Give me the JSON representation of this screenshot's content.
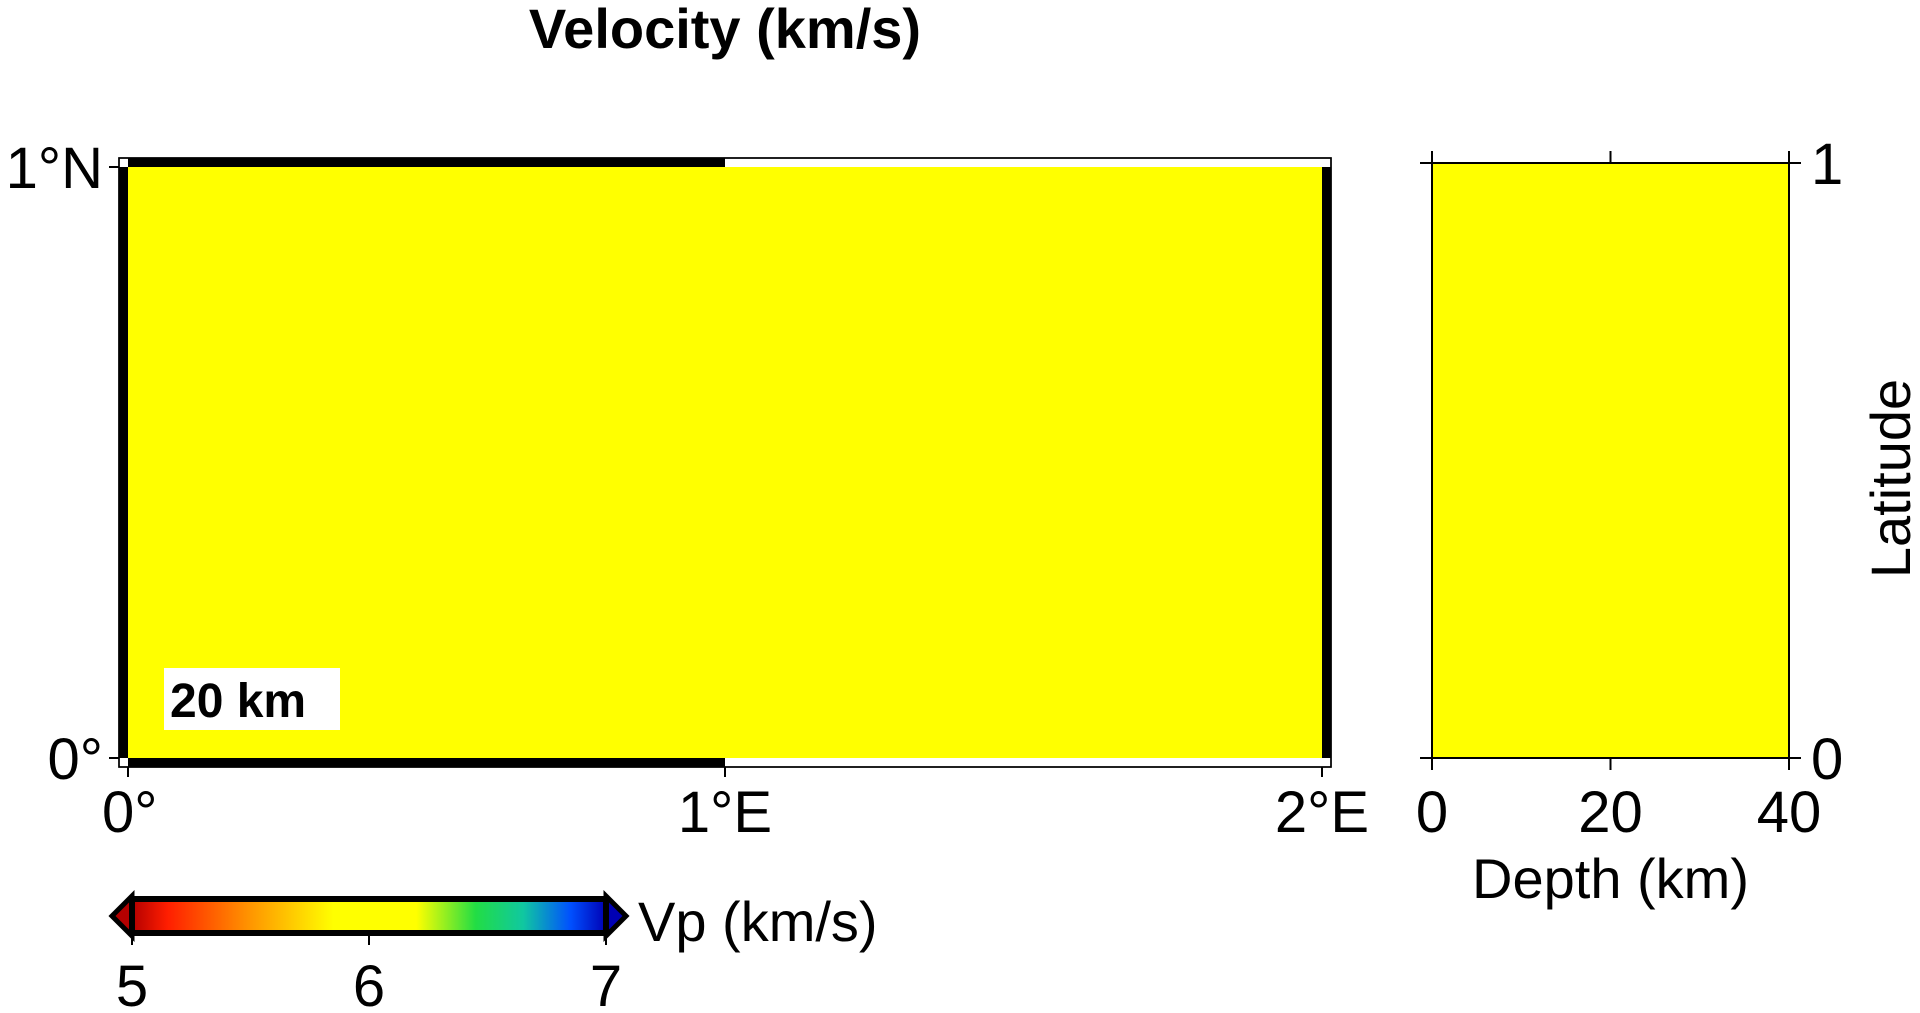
{
  "title": "Velocity (km/s)",
  "chart_data": [
    {
      "type": "heatmap",
      "name": "map-view",
      "xlim": [
        0,
        2
      ],
      "ylim": [
        0,
        1
      ],
      "x_ticks": [
        {
          "value": 0,
          "label": "0°"
        },
        {
          "value": 1,
          "label": "1°E"
        },
        {
          "value": 2,
          "label": "2°E"
        }
      ],
      "y_ticks": [
        {
          "value": 0,
          "label": "0°"
        },
        {
          "value": 1,
          "label": "1°N"
        }
      ],
      "value": 6.0,
      "fill_color": "#ffff00",
      "depth_label": "20 km",
      "frame_style": "fancy"
    },
    {
      "type": "heatmap",
      "name": "depth-section",
      "xlim": [
        0,
        40
      ],
      "ylim": [
        0,
        1
      ],
      "xlabel": "Depth (km)",
      "ylabel": "Latitude",
      "x_ticks": [
        {
          "value": 0,
          "label": "0"
        },
        {
          "value": 20,
          "label": "20"
        },
        {
          "value": 40,
          "label": "40"
        }
      ],
      "y_ticks": [
        {
          "value": 0,
          "label": "0"
        },
        {
          "value": 1,
          "label": "1"
        }
      ],
      "value": 6.0,
      "fill_color": "#ffff00"
    }
  ],
  "colorbar": {
    "label": "Vp (km/s)",
    "range": [
      5,
      7
    ],
    "ticks": [
      {
        "value": 5,
        "label": "5"
      },
      {
        "value": 6,
        "label": "6"
      },
      {
        "value": 7,
        "label": "7"
      }
    ],
    "stops": [
      {
        "value": 5.0,
        "color": "#b40000"
      },
      {
        "value": 5.15,
        "color": "#ff1e00"
      },
      {
        "value": 5.5,
        "color": "#ff9600"
      },
      {
        "value": 5.85,
        "color": "#ffff00"
      },
      {
        "value": 6.2,
        "color": "#ffff00"
      },
      {
        "value": 6.45,
        "color": "#22dd44"
      },
      {
        "value": 6.65,
        "color": "#10c8a0"
      },
      {
        "value": 6.85,
        "color": "#0050ff"
      },
      {
        "value": 7.0,
        "color": "#0000b4"
      }
    ],
    "below_color": "#b40000",
    "above_color": "#0000b4"
  }
}
